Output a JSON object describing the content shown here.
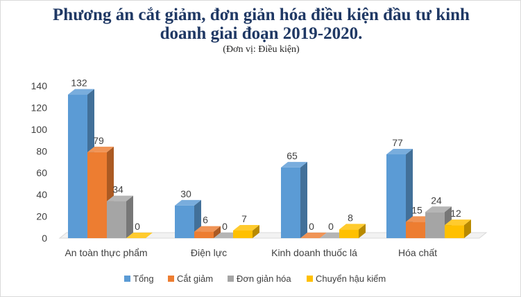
{
  "chart_data": {
    "type": "bar",
    "title_line1": "Phương án cắt giảm, đơn giản hóa điều kiện đầu tư kinh",
    "title_line2": "doanh giai đoạn 2019-2020.",
    "subtitle": "(Đơn vị: Điều kiện)",
    "categories": [
      "An toàn thực phẩm",
      "Điện lực",
      "Kinh doanh thuốc lá",
      "Hóa chất"
    ],
    "series": [
      {
        "name": "Tổng",
        "values": [
          132,
          30,
          65,
          77
        ],
        "color": "#5b9bd5"
      },
      {
        "name": "Cắt giảm",
        "values": [
          79,
          6,
          0,
          15
        ],
        "color": "#ed7d31"
      },
      {
        "name": "Đơn giản hóa",
        "values": [
          34,
          0,
          0,
          24
        ],
        "color": "#a5a5a5"
      },
      {
        "name": "Chuyển hậu kiểm",
        "values": [
          0,
          7,
          8,
          12
        ],
        "color": "#ffc000"
      }
    ],
    "yticks": [
      0,
      20,
      40,
      60,
      80,
      100,
      120,
      140
    ],
    "ylim": [
      0,
      140
    ],
    "grid": false,
    "legend_position": "bottom",
    "style": "3d-clustered-column"
  }
}
